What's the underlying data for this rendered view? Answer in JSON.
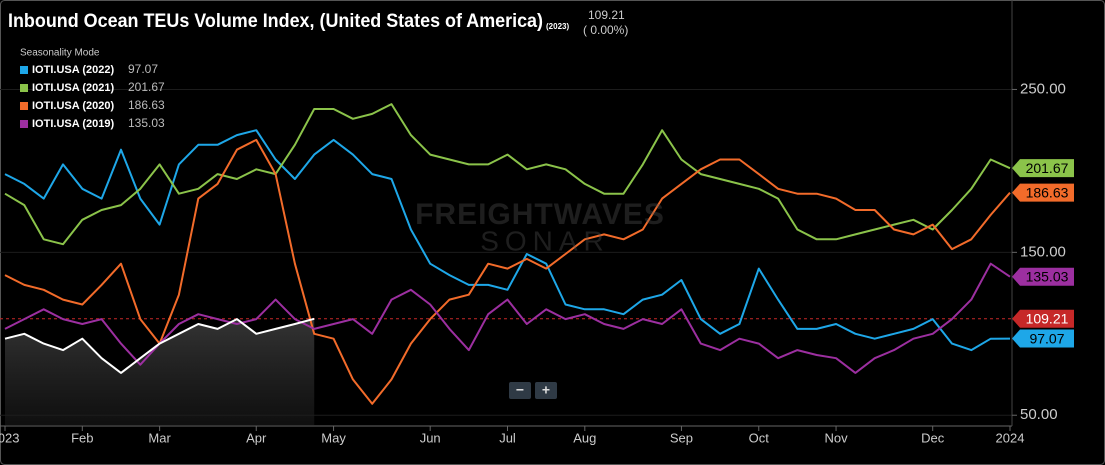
{
  "chart_data": {
    "type": "line",
    "title": "Inbound Ocean TEUs Volume Index, (United States of America)",
    "title_year": "(2023)",
    "current_value": 109.21,
    "change": "( 0.00%)",
    "legend_title": "Seasonality Mode",
    "watermark": [
      "FREIGHTWAVES",
      "SONAR"
    ],
    "zoom_buttons": [
      "−",
      "+"
    ],
    "marker_color": "#c62828",
    "categories": [
      "2023",
      null,
      null,
      null,
      "Feb",
      null,
      null,
      null,
      "Mar",
      null,
      null,
      null,
      null,
      "Apr",
      null,
      null,
      null,
      "May",
      null,
      null,
      null,
      null,
      "Jun",
      null,
      null,
      null,
      "Jul",
      null,
      null,
      null,
      "Aug",
      null,
      null,
      null,
      null,
      "Sep",
      null,
      null,
      null,
      "Oct",
      null,
      null,
      null,
      "Nov",
      null,
      null,
      null,
      null,
      "Dec",
      null,
      null,
      null,
      "2024"
    ],
    "ylim": [
      44,
      300
    ],
    "yticks": [
      {
        "value": 50,
        "label": "50.00"
      },
      {
        "value": 150,
        "label": "150.00"
      },
      {
        "value": 250,
        "label": "250.00"
      }
    ],
    "series": [
      {
        "name": "IOTI.USA (2022)",
        "color": "#1ea7e8",
        "values": [
          198,
          192,
          183,
          204,
          189,
          183,
          213,
          183,
          167,
          204,
          216,
          216,
          222,
          225,
          207,
          195,
          210,
          219,
          210,
          198,
          195,
          164,
          143,
          136,
          130,
          130,
          127,
          149,
          143,
          118,
          115,
          115,
          112,
          121,
          124,
          133,
          109,
          100,
          106,
          140,
          121,
          103,
          103,
          106,
          100,
          97,
          100,
          103,
          109,
          94,
          90,
          97,
          97.07
        ]
      },
      {
        "name": "IOTI.USA (2021)",
        "color": "#8bc34a",
        "values": [
          186,
          179,
          158,
          155,
          170,
          176,
          179,
          189,
          204,
          186,
          189,
          198,
          195,
          201,
          198,
          216,
          238,
          238,
          232,
          235,
          241,
          222,
          210,
          207,
          204,
          204,
          210,
          201,
          204,
          201,
          192,
          186,
          186,
          204,
          225,
          207,
          198,
          195,
          192,
          189,
          183,
          164,
          158,
          158,
          161,
          164,
          167,
          170,
          164,
          176,
          189,
          207,
          201.67
        ]
      },
      {
        "name": "IOTI.USA (2020)",
        "color": "#f26b2a",
        "values": [
          136,
          130,
          127,
          121,
          118,
          130,
          143,
          109,
          94,
          124,
          183,
          192,
          213,
          219,
          198,
          143,
          100,
          97,
          72,
          57,
          72,
          94,
          109,
          121,
          124,
          143,
          140,
          146,
          140,
          149,
          158,
          161,
          158,
          164,
          183,
          192,
          201,
          207,
          207,
          198,
          189,
          186,
          186,
          183,
          176,
          176,
          164,
          161,
          167,
          152,
          158,
          173,
          186.63
        ]
      },
      {
        "name": "IOTI.USA (2019)",
        "color": "#9c2fa0",
        "values": [
          103,
          109,
          115,
          109,
          106,
          109,
          94,
          81,
          94,
          106,
          112,
          109,
          106,
          109,
          121,
          109,
          103,
          106,
          109,
          100,
          121,
          127,
          118,
          103,
          90,
          112,
          121,
          106,
          115,
          109,
          112,
          106,
          103,
          109,
          106,
          115,
          94,
          90,
          97,
          94,
          85,
          90,
          87,
          85,
          76,
          85,
          90,
          97,
          100,
          109,
          121,
          143,
          135.03
        ]
      },
      {
        "color": "#ffffff",
        "values": [
          97,
          100,
          94,
          90,
          97,
          85,
          76,
          85,
          94,
          100,
          106,
          103,
          109,
          100,
          103,
          106,
          109.21,
          null,
          null,
          null,
          null,
          null,
          null,
          null,
          null,
          null,
          null,
          null,
          null,
          null,
          null,
          null,
          null,
          null,
          null,
          null,
          null,
          null,
          null,
          null,
          null,
          null,
          null,
          null,
          null,
          null,
          null,
          null,
          null,
          null,
          null,
          null,
          null
        ]
      }
    ]
  }
}
